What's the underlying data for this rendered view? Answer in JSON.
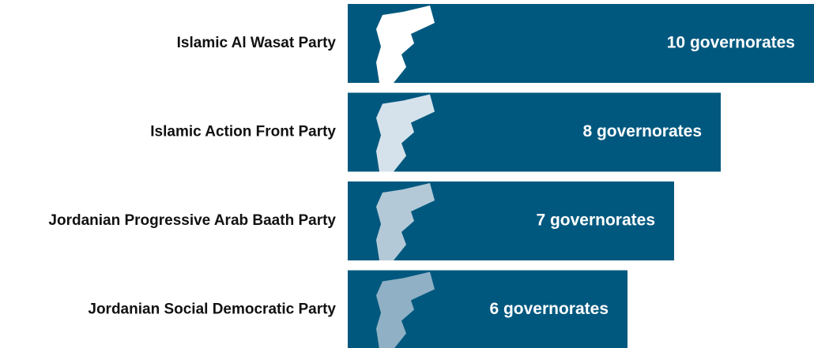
{
  "chart_data": {
    "type": "bar",
    "orientation": "horizontal",
    "categories": [
      "Islamic Al Wasat Party",
      "Islamic Action Front Party",
      "Jordanian Progressive Arab Baath Party",
      "Jordanian Social Democratic Party"
    ],
    "values": [
      10,
      8,
      7,
      6
    ],
    "value_labels": [
      "10 governorates",
      "8 governorates",
      "7 governorates",
      "6 governorates"
    ],
    "color": "#00587e",
    "icon_colors": [
      "#ffffff",
      "#d5e2eb",
      "#b3c9d8",
      "#8fb0c5"
    ],
    "xlim": [
      0,
      10
    ]
  }
}
